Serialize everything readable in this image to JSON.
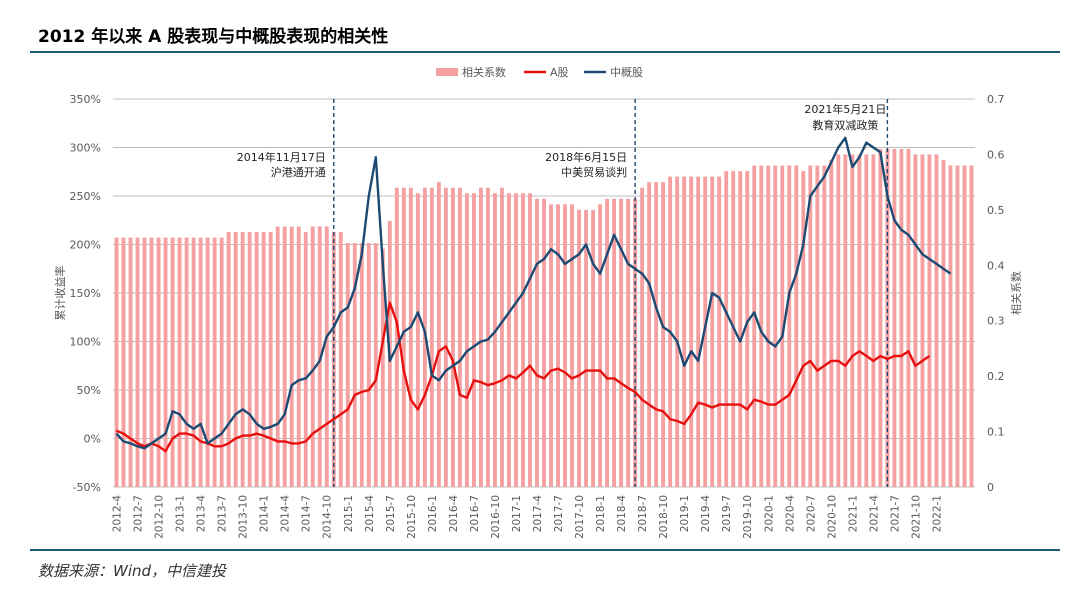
{
  "header": {
    "title": "2012 年以来 A 股表现与中概股表现的相关性"
  },
  "footer": {
    "source": "数据来源：Wind，中信建投"
  },
  "colors": {
    "bar": "#f4a0a0",
    "a_share": "#e8100f",
    "china_concept": "#1d4a72",
    "rule": "#1f5a78",
    "grid": "#bdbdbd",
    "text": "#595959",
    "annotation_line": "#1d4a72"
  },
  "chart_data": {
    "type": "bar+line",
    "legend": {
      "position": "top-center",
      "items": [
        "相关系数",
        "A股",
        "中概股"
      ]
    },
    "y_left": {
      "label": "累计收益率",
      "ticks": [
        "-50%",
        "0%",
        "50%",
        "100%",
        "150%",
        "200%",
        "250%",
        "300%",
        "350%"
      ],
      "min": -50,
      "max": 350
    },
    "y_right": {
      "label": "相关系数",
      "ticks": [
        "0",
        "0.1",
        "0.2",
        "0.3",
        "0.4",
        "0.5",
        "0.6",
        "0.7"
      ],
      "min": 0,
      "max": 0.7
    },
    "x_tick_labels": [
      "2012-4",
      "2012-7",
      "2012-10",
      "2013-1",
      "2013-4",
      "2013-7",
      "2013-10",
      "2014-1",
      "2014-4",
      "2014-7",
      "2014-10",
      "2015-1",
      "2015-4",
      "2015-7",
      "2015-10",
      "2016-1",
      "2016-4",
      "2016-7",
      "2016-10",
      "2017-1",
      "2017-4",
      "2017-7",
      "2017-10",
      "2018-1",
      "2018-4",
      "2018-7",
      "2018-10",
      "2019-1",
      "2019-4",
      "2019-7",
      "2019-10",
      "2020-1",
      "2020-4",
      "2020-7",
      "2020-10",
      "2021-1",
      "2021-4",
      "2021-7",
      "2021-10",
      "2022-1"
    ],
    "annotations": [
      {
        "month_index": 31,
        "lines": [
          "2014年11月17日",
          "沪港通开通"
        ]
      },
      {
        "month_index": 74,
        "lines": [
          "2018年6月15日",
          "中美贸易谈判"
        ]
      },
      {
        "month_index": 110,
        "lines": [
          "2021年5月21日",
          "教育双减政策"
        ]
      }
    ],
    "series": [
      {
        "name": "相关系数",
        "type": "bar",
        "axis": "right",
        "values": [
          0.45,
          0.45,
          0.45,
          0.45,
          0.45,
          0.45,
          0.45,
          0.45,
          0.45,
          0.45,
          0.45,
          0.45,
          0.45,
          0.45,
          0.45,
          0.45,
          0.46,
          0.46,
          0.46,
          0.46,
          0.46,
          0.46,
          0.46,
          0.47,
          0.47,
          0.47,
          0.47,
          0.46,
          0.47,
          0.47,
          0.47,
          0.46,
          0.46,
          0.44,
          0.44,
          0.44,
          0.44,
          0.44,
          0.43,
          0.48,
          0.54,
          0.54,
          0.54,
          0.53,
          0.54,
          0.54,
          0.55,
          0.54,
          0.54,
          0.54,
          0.53,
          0.53,
          0.54,
          0.54,
          0.53,
          0.54,
          0.53,
          0.53,
          0.53,
          0.53,
          0.52,
          0.52,
          0.51,
          0.51,
          0.51,
          0.51,
          0.5,
          0.5,
          0.5,
          0.51,
          0.52,
          0.52,
          0.52,
          0.52,
          0.52,
          0.54,
          0.55,
          0.55,
          0.55,
          0.56,
          0.56,
          0.56,
          0.56,
          0.56,
          0.56,
          0.56,
          0.56,
          0.57,
          0.57,
          0.57,
          0.57,
          0.58,
          0.58,
          0.58,
          0.58,
          0.58,
          0.58,
          0.58,
          0.57,
          0.58,
          0.58,
          0.58,
          0.59,
          0.6,
          0.6,
          0.6,
          0.6,
          0.6,
          0.6,
          0.61,
          0.61,
          0.61,
          0.61,
          0.61,
          0.6,
          0.6,
          0.6,
          0.6,
          0.59,
          0.58,
          0.58,
          0.58,
          0.58
        ]
      },
      {
        "name": "A股",
        "type": "line",
        "axis": "left",
        "values": [
          8,
          5,
          0,
          -5,
          -8,
          -5,
          -8,
          -13,
          0,
          5,
          5,
          3,
          -3,
          -5,
          -8,
          -8,
          -5,
          0,
          3,
          3,
          5,
          3,
          0,
          -3,
          -3,
          -5,
          -5,
          -3,
          5,
          10,
          15,
          20,
          25,
          30,
          45,
          48,
          50,
          60,
          100,
          140,
          120,
          70,
          40,
          30,
          45,
          65,
          90,
          95,
          80,
          45,
          42,
          60,
          58,
          55,
          57,
          60,
          65,
          62,
          68,
          75,
          65,
          62,
          70,
          72,
          68,
          62,
          65,
          70,
          70,
          70,
          62,
          62,
          57,
          52,
          48,
          40,
          35,
          30,
          28,
          20,
          18,
          15,
          25,
          37,
          35,
          32,
          35,
          35,
          35,
          35,
          30,
          40,
          38,
          35,
          35,
          40,
          45,
          60,
          75,
          80,
          70,
          75,
          80,
          80,
          75,
          85,
          90,
          85,
          80,
          85,
          82,
          85,
          85,
          90,
          75,
          80,
          85
        ]
      },
      {
        "name": "中概股",
        "type": "line",
        "axis": "right-left",
        "values": [
          5,
          -3,
          -5,
          -8,
          -10,
          -5,
          0,
          5,
          28,
          25,
          15,
          10,
          15,
          -5,
          0,
          5,
          15,
          25,
          30,
          25,
          15,
          10,
          12,
          15,
          25,
          55,
          60,
          62,
          70,
          80,
          105,
          115,
          130,
          135,
          155,
          190,
          250,
          290,
          180,
          80,
          95,
          110,
          115,
          130,
          110,
          65,
          60,
          70,
          75,
          80,
          90,
          95,
          100,
          102,
          110,
          120,
          130,
          140,
          150,
          165,
          180,
          185,
          195,
          190,
          180,
          185,
          190,
          200,
          180,
          170,
          190,
          210,
          195,
          180,
          175,
          170,
          160,
          135,
          115,
          110,
          100,
          75,
          90,
          80,
          115,
          150,
          145,
          130,
          115,
          100,
          120,
          130,
          110,
          100,
          95,
          105,
          150,
          170,
          200,
          250,
          260,
          270,
          285,
          300,
          310,
          280,
          290,
          305,
          300,
          295,
          250,
          225,
          215,
          210,
          200,
          190,
          185,
          180,
          175,
          170
        ]
      }
    ]
  }
}
